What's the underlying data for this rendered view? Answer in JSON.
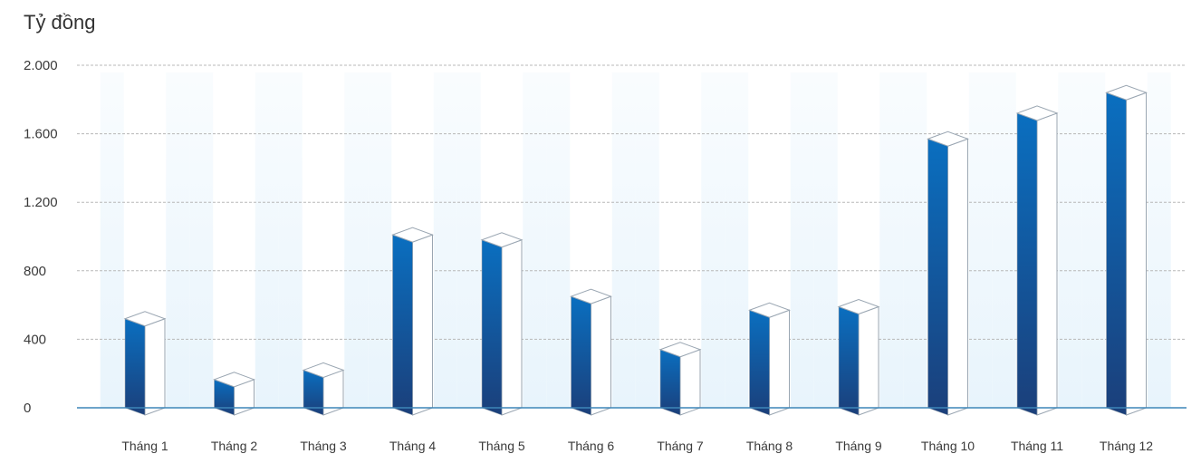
{
  "chart_data": {
    "type": "bar",
    "ylabel": "Tỷ đồng",
    "categories": [
      "Tháng 1",
      "Tháng 2",
      "Tháng 3",
      "Tháng 4",
      "Tháng 5",
      "Tháng 6",
      "Tháng 7",
      "Tháng 8",
      "Tháng 9",
      "Tháng 10",
      "Tháng 11",
      "Tháng 12"
    ],
    "values": [
      520,
      165,
      220,
      1010,
      980,
      650,
      340,
      570,
      590,
      1570,
      1720,
      1840
    ],
    "ylim": [
      0,
      2000
    ],
    "yticks": [
      0,
      400,
      800,
      1200,
      1600,
      2000
    ],
    "ytick_labels": [
      "0",
      "400",
      "800",
      "1.200",
      "1.600",
      "2.000"
    ],
    "grid": true,
    "colors": {
      "bar_low": "#1b3f7a",
      "bar_high": "#0a6fc0",
      "bar_side": "#ffffff",
      "bar_outline": "#9aa6b2",
      "stripe": "#e8f4fc",
      "axis": "#3d86b8",
      "grid": "#b8b8b8"
    }
  }
}
